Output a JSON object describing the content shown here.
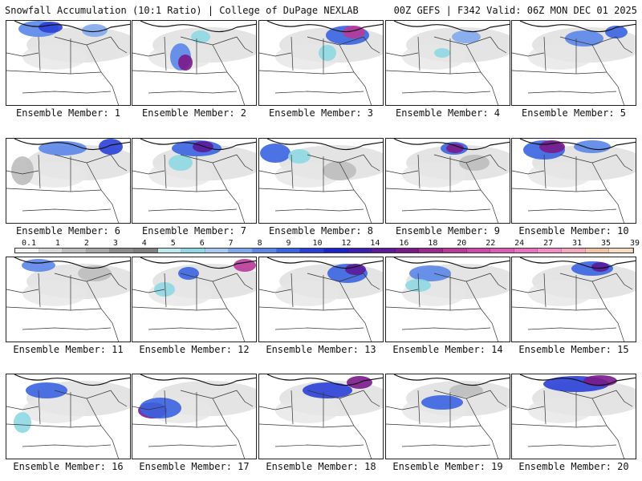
{
  "header": {
    "left": "Snowfall Accumulation (10:1 Ratio) | College of DuPage NEXLAB",
    "right": "00Z GEFS | F342 Valid: 06Z MON DEC 01 2025"
  },
  "panels": [
    {
      "caption": "Ensemble Member: 1"
    },
    {
      "caption": "Ensemble Member: 2"
    },
    {
      "caption": "Ensemble Member: 3"
    },
    {
      "caption": "Ensemble Member: 4"
    },
    {
      "caption": "Ensemble Member: 5"
    },
    {
      "caption": "Ensemble Member: 6"
    },
    {
      "caption": "Ensemble Member: 7"
    },
    {
      "caption": "Ensemble Member: 8"
    },
    {
      "caption": "Ensemble Member: 9"
    },
    {
      "caption": "Ensemble Member: 10"
    },
    {
      "caption": "Ensemble Member: 11"
    },
    {
      "caption": "Ensemble Member: 12"
    },
    {
      "caption": "Ensemble Member: 13"
    },
    {
      "caption": "Ensemble Member: 14"
    },
    {
      "caption": "Ensemble Member: 15"
    },
    {
      "caption": "Ensemble Member: 16"
    },
    {
      "caption": "Ensemble Member: 17"
    },
    {
      "caption": "Ensemble Member: 18"
    },
    {
      "caption": "Ensemble Member: 19"
    },
    {
      "caption": "Ensemble Member: 20"
    }
  ],
  "colorbar": {
    "labels": [
      "0.1",
      "1",
      "2",
      "3",
      "4",
      "5",
      "6",
      "7",
      "8",
      "9",
      "10",
      "12",
      "14",
      "16",
      "18",
      "20",
      "22",
      "24",
      "27",
      "31",
      "35",
      "39"
    ],
    "colors": [
      "#f2f2f2",
      "#d9d9d9",
      "#bdbdbd",
      "#a6a6a6",
      "#8c8c8c",
      "#7f7f7f",
      "#bfe8ee",
      "#8fd8e2",
      "#a8c8f0",
      "#7fa8ec",
      "#5b86e8",
      "#3a63e0",
      "#2a3fd8",
      "#1f24c8",
      "#3a1fb0",
      "#5a1a9a",
      "#7a1a8a",
      "#9a2a8e",
      "#b83a98",
      "#cc4aa6",
      "#dc5cb4",
      "#e874c0",
      "#f08ec8",
      "#f2a8b8",
      "#eec4a8",
      "#f4dcc4"
    ]
  }
}
